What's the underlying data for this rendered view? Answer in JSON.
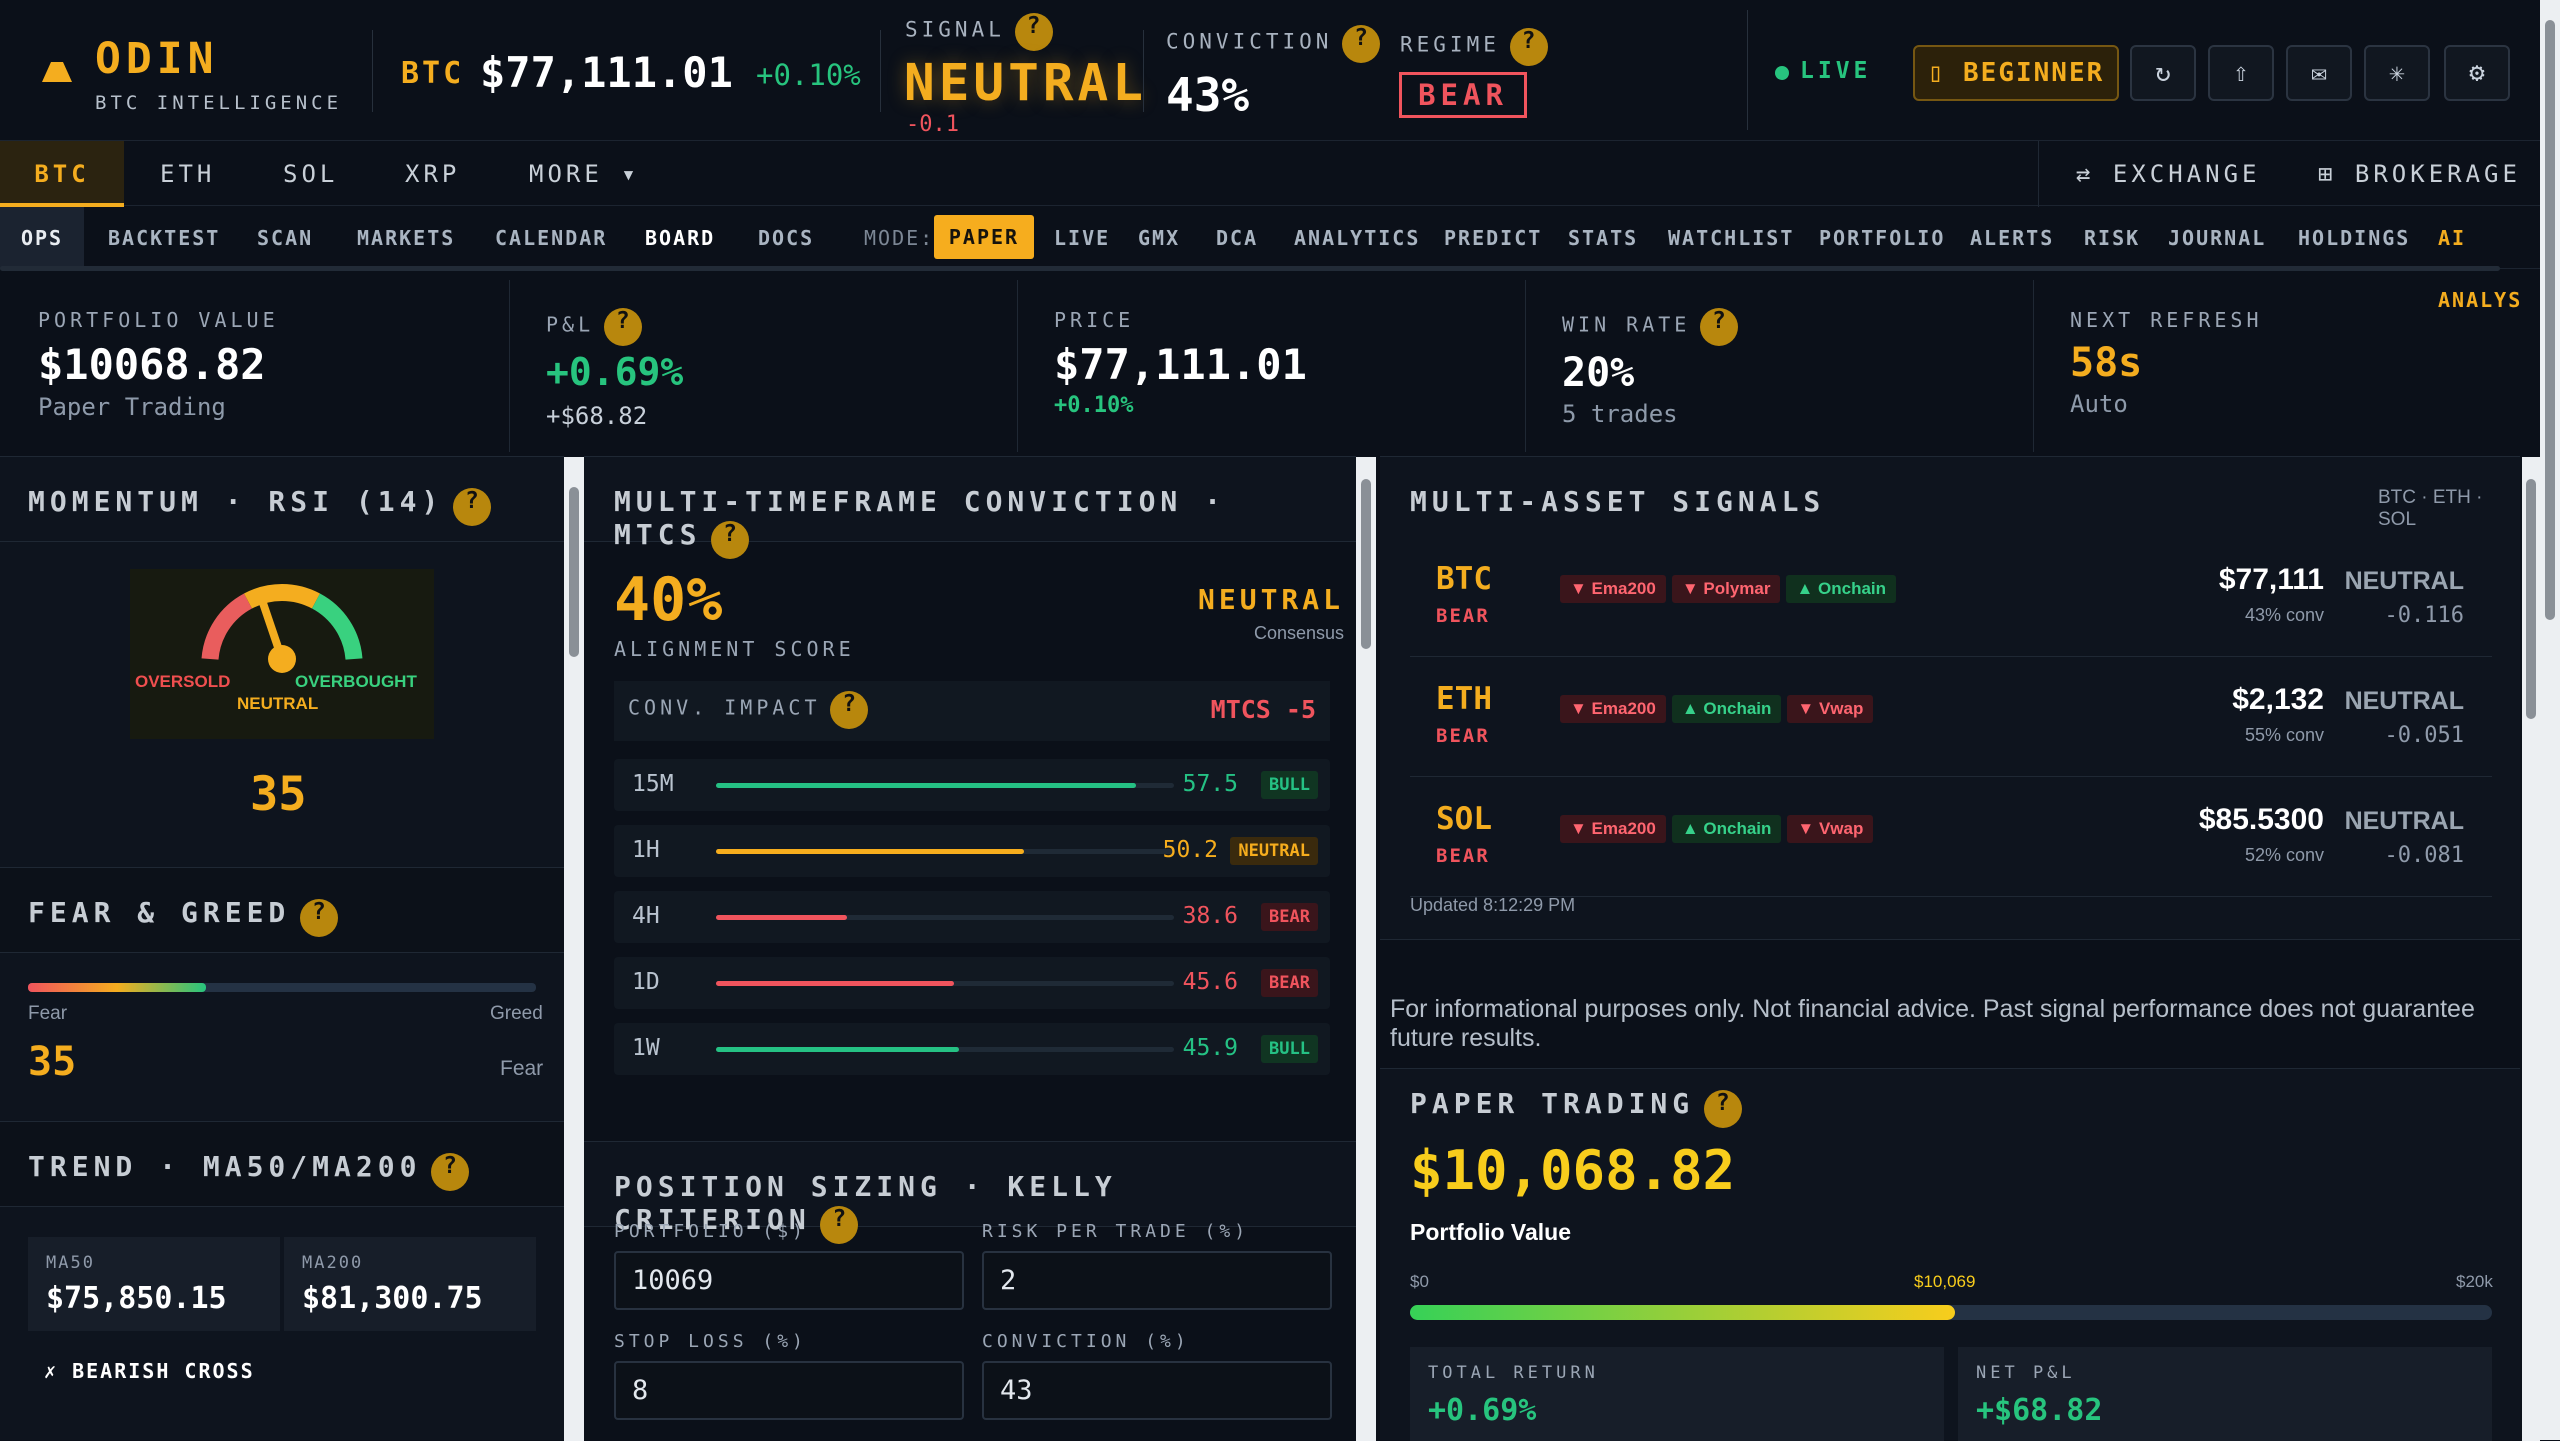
{
  "header": {
    "brand": "ODIN",
    "subtitle": "BTC INTELLIGENCE",
    "asset": "BTC",
    "price": "$77,111.01",
    "change": "+0.10%",
    "signal_label": "SIGNAL",
    "signal_value": "NEUTRAL",
    "signal_delta": "-0.1",
    "conviction_label": "CONVICTION",
    "conviction_value": "43%",
    "regime_label": "REGIME",
    "regime_value": "BEAR",
    "live": "LIVE",
    "beginner": "BEGINNER",
    "icons": [
      "refresh-icon",
      "share-icon",
      "mail-icon",
      "asterisk-icon",
      "settings-icon"
    ]
  },
  "tabs": [
    "BTC",
    "ETH",
    "SOL",
    "XRP",
    "MORE ▾"
  ],
  "exchange": "EXCHANGE",
  "brokerage": "BROKERAGE",
  "subnav": [
    "OPS",
    "BACKTEST",
    "SCAN",
    "MARKETS",
    "CALENDAR",
    "BOARD",
    "DOCS"
  ],
  "mode_label": "MODE:",
  "modes": [
    "PAPER",
    "LIVE",
    "GMX",
    "DCA",
    "ANALYTICS",
    "PREDICT",
    "STATS",
    "WATCHLIST",
    "PORTFOLIO",
    "ALERTS",
    "RISK",
    "JOURNAL",
    "HOLDINGS",
    "AI ANALYS"
  ],
  "summary": [
    {
      "label": "PORTFOLIO VALUE",
      "value": "$10068.82",
      "sub": "Paper Trading"
    },
    {
      "label": "P&L",
      "value": "+0.69%",
      "sub": "+$68.82"
    },
    {
      "label": "PRICE",
      "value": "$77,111.01",
      "sub": "+0.10%"
    },
    {
      "label": "WIN RATE",
      "value": "20%",
      "sub": "5 trades"
    },
    {
      "label": "NEXT REFRESH",
      "value": "58s",
      "sub": "Auto"
    }
  ],
  "momentum": {
    "title": "MOMENTUM · RSI (14)",
    "oversold": "OVERSOLD",
    "overbought": "OVERBOUGHT",
    "neutral": "NEUTRAL",
    "value": "35",
    "value_num": 35
  },
  "fear_greed": {
    "title": "FEAR & GREED",
    "left": "Fear",
    "right": "Greed",
    "value": "35",
    "state": "Fear",
    "value_num": 35
  },
  "trend": {
    "title": "TREND · MA50/MA200",
    "ma50_label": "MA50",
    "ma50": "$75,850.15",
    "ma200_label": "MA200",
    "ma200": "$81,300.75",
    "cross": "✗ BEARISH CROSS"
  },
  "mtcs": {
    "title": "MULTI-TIMEFRAME CONVICTION · MTCS",
    "score": "40%",
    "score_label": "ALIGNMENT SCORE",
    "consensus": "NEUTRAL",
    "consensus_label": "Consensus",
    "impact_label": "CONV. IMPACT",
    "impact": "MTCS -5",
    "timeframes": [
      {
        "tf": "15M",
        "value": "57.5",
        "value_num": 57.5,
        "bias": "BULL",
        "color": "#25c184"
      },
      {
        "tf": "1H",
        "value": "50.2",
        "value_num": 50.2,
        "bias": "NEUTRAL",
        "color": "#f6ad1d"
      },
      {
        "tf": "4H",
        "value": "38.6",
        "value_num": 38.6,
        "bias": "BEAR",
        "color": "#f0545d"
      },
      {
        "tf": "1D",
        "value": "45.6",
        "value_num": 45.6,
        "bias": "BEAR",
        "color": "#f0545d"
      },
      {
        "tf": "1W",
        "value": "45.9",
        "value_num": 45.9,
        "bias": "BULL",
        "color": "#25c184"
      }
    ]
  },
  "kelly": {
    "title": "POSITION SIZING · KELLY CRITERION",
    "portfolio_label": "PORTFOLIO ($)",
    "portfolio": "10069",
    "risk_label": "RISK PER TRADE (%)",
    "risk": "2",
    "stop_label": "STOP LOSS (%)",
    "stop": "8",
    "conv_label": "CONVICTION (%)",
    "conv": "43"
  },
  "multi_asset": {
    "title": "MULTI-ASSET SIGNALS",
    "tickers": "BTC · ETH · SOL",
    "updated": "Updated 8:12:29 PM",
    "assets": [
      {
        "symbol": "BTC",
        "regime": "BEAR",
        "tags": [
          [
            "▼ Ema200",
            "down"
          ],
          [
            "▼ Polymar",
            "down"
          ],
          [
            "▲ Onchain",
            "up"
          ]
        ],
        "price": "$77,111",
        "conv": "43% conv",
        "signal": "NEUTRAL",
        "score": "-0.116"
      },
      {
        "symbol": "ETH",
        "regime": "BEAR",
        "tags": [
          [
            "▼ Ema200",
            "down"
          ],
          [
            "▲ Onchain",
            "up"
          ],
          [
            "▼ Vwap",
            "down"
          ]
        ],
        "price": "$2,132",
        "conv": "55% conv",
        "signal": "NEUTRAL",
        "score": "-0.051"
      },
      {
        "symbol": "SOL",
        "regime": "BEAR",
        "tags": [
          [
            "▼ Ema200",
            "down"
          ],
          [
            "▲ Onchain",
            "up"
          ],
          [
            "▼ Vwap",
            "down"
          ]
        ],
        "price": "$85.5300",
        "conv": "52% conv",
        "signal": "NEUTRAL",
        "score": "-0.081"
      }
    ]
  },
  "disclaimer": "For informational purposes only. Not financial advice. Past signal performance does not guarantee future results.",
  "paper": {
    "title": "PAPER TRADING",
    "value": "$10,068.82",
    "value_label": "Portfolio Value",
    "min": "$0",
    "current": "$10,069",
    "max": "$20k",
    "progress": 0.5034,
    "total_return_label": "TOTAL RETURN",
    "total_return": "+0.69%",
    "net_pl_label": "NET P&L",
    "net_pl": "+$68.82"
  },
  "colors": {
    "accent": "#f4ad1f",
    "green": "#27c47e",
    "red": "#f0545d",
    "background": "#0b1019"
  }
}
